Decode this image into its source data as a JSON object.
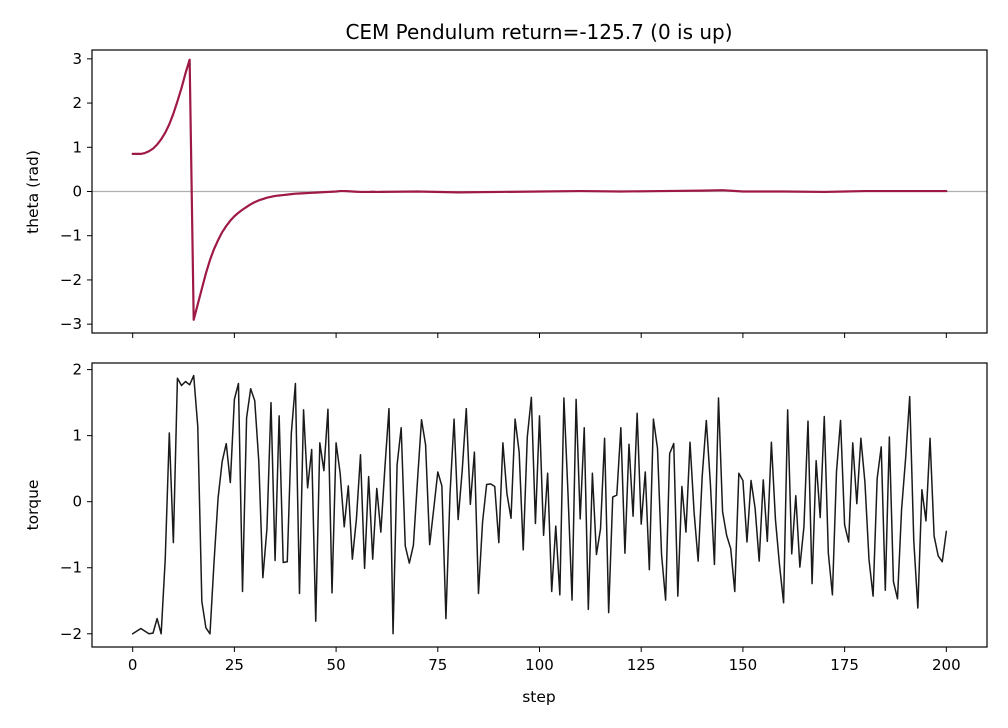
{
  "chart_data": [
    {
      "type": "line",
      "title": "CEM Pendulum  return=-125.7  (0 is up)",
      "xlabel": "",
      "ylabel": "theta (rad)",
      "xlim": [
        -10,
        210
      ],
      "ylim": [
        -3.2,
        3.2
      ],
      "xticks": [
        0,
        25,
        50,
        75,
        100,
        125,
        150,
        175,
        200
      ],
      "yticks": [
        -3,
        -2,
        -1,
        0,
        1,
        2,
        3
      ],
      "xtick_labels_visible": false,
      "grid": false,
      "reference_line": {
        "y": 0,
        "color": "#b0b0b0"
      },
      "series": [
        {
          "name": "",
          "color": "#9e1a45",
          "x": [
            0,
            1,
            2,
            3,
            4,
            5,
            6,
            7,
            8,
            9,
            10,
            11,
            12,
            13,
            14,
            15,
            16,
            17,
            18,
            19,
            20,
            21,
            22,
            23,
            24,
            25,
            26,
            27,
            28,
            29,
            30,
            31,
            32,
            33,
            34,
            35,
            36,
            37,
            38,
            39,
            40,
            41,
            42,
            43,
            44,
            45,
            46,
            47,
            48,
            49,
            50,
            51,
            52,
            53,
            54,
            55,
            56,
            57,
            58,
            59,
            60,
            70,
            80,
            90,
            100,
            110,
            120,
            130,
            140,
            145,
            150,
            160,
            170,
            175,
            180,
            190,
            200
          ],
          "y": [
            0.85,
            0.85,
            0.85,
            0.87,
            0.91,
            0.97,
            1.06,
            1.18,
            1.33,
            1.52,
            1.76,
            2.04,
            2.34,
            2.68,
            2.98,
            -2.9,
            -2.55,
            -2.2,
            -1.85,
            -1.55,
            -1.3,
            -1.1,
            -0.92,
            -0.78,
            -0.66,
            -0.56,
            -0.48,
            -0.41,
            -0.35,
            -0.29,
            -0.24,
            -0.2,
            -0.17,
            -0.14,
            -0.12,
            -0.1,
            -0.09,
            -0.08,
            -0.07,
            -0.06,
            -0.05,
            -0.045,
            -0.04,
            -0.035,
            -0.03,
            -0.025,
            -0.02,
            -0.015,
            -0.01,
            -0.005,
            0.0,
            0.01,
            0.01,
            0.005,
            0.0,
            -0.005,
            -0.01,
            -0.01,
            -0.01,
            -0.005,
            -0.01,
            0.0,
            -0.02,
            -0.01,
            0.0,
            0.01,
            0.0,
            0.01,
            0.02,
            0.03,
            0.0,
            0.0,
            -0.01,
            0.0,
            0.01,
            0.01,
            0.01
          ]
        }
      ]
    },
    {
      "type": "line",
      "title": "",
      "xlabel": "step",
      "ylabel": "torque",
      "xlim": [
        -10,
        210
      ],
      "ylim": [
        -2.2,
        2.1
      ],
      "xticks": [
        0,
        25,
        50,
        75,
        100,
        125,
        150,
        175,
        200
      ],
      "yticks": [
        -2,
        -1,
        0,
        1,
        2
      ],
      "xtick_labels_visible": true,
      "grid": false,
      "series": [
        {
          "name": "",
          "color": "#1a1a1a",
          "y": [
            -2.0,
            -1.96,
            -1.92,
            -1.96,
            -2.0,
            -1.99,
            -1.77,
            -2.0,
            -0.87,
            1.04,
            -0.62,
            1.87,
            1.76,
            1.82,
            1.77,
            1.91,
            1.14,
            -1.51,
            -1.91,
            -2.0,
            -0.91,
            0.06,
            0.61,
            0.88,
            0.29,
            1.55,
            1.79,
            -1.36,
            1.27,
            1.71,
            1.53,
            0.61,
            -1.15,
            -0.41,
            1.5,
            -0.89,
            1.3,
            -0.92,
            -0.91,
            1.04,
            1.79,
            -1.39,
            1.39,
            0.21,
            0.79,
            -1.81,
            0.89,
            0.47,
            1.4,
            -1.38,
            0.89,
            0.43,
            -0.38,
            0.24,
            -0.87,
            -0.26,
            0.71,
            -1.01,
            0.38,
            -0.87,
            0.2,
            -0.46,
            0.52,
            1.41,
            -2.0,
            0.56,
            1.12,
            -0.67,
            -0.93,
            -0.66,
            0.31,
            1.24,
            0.86,
            -0.65,
            -0.11,
            0.45,
            0.24,
            -1.77,
            0.11,
            1.25,
            -0.27,
            0.47,
            1.41,
            -0.04,
            0.75,
            -1.39,
            -0.31,
            0.26,
            0.27,
            0.23,
            -0.62,
            0.89,
            0.12,
            -0.25,
            1.25,
            0.75,
            -0.73,
            0.98,
            1.58,
            -0.33,
            1.3,
            -0.51,
            0.43,
            -1.36,
            -0.37,
            -1.41,
            1.57,
            0.13,
            -1.49,
            1.55,
            -0.26,
            1.12,
            -1.63,
            0.43,
            -0.8,
            -0.41,
            0.96,
            -1.68,
            0.07,
            0.1,
            1.12,
            -0.78,
            0.87,
            -0.22,
            1.34,
            -0.34,
            0.45,
            -1.03,
            1.25,
            0.81,
            -0.8,
            -1.49,
            0.73,
            0.88,
            -1.43,
            0.23,
            -0.46,
            0.9,
            -0.16,
            -0.9,
            0.39,
            1.23,
            0.28,
            -0.95,
            1.57,
            -0.15,
            -0.51,
            -0.71,
            -1.36,
            0.43,
            0.32,
            -0.61,
            0.32,
            -0.1,
            -0.9,
            0.33,
            -0.6,
            0.9,
            -0.27,
            -0.96,
            -1.53,
            1.39,
            -0.79,
            0.09,
            -0.99,
            -0.38,
            1.22,
            -1.24,
            0.62,
            -0.24,
            1.29,
            -0.78,
            -1.41,
            0.45,
            1.23,
            -0.35,
            -0.61,
            0.89,
            -0.03,
            0.96,
            0.29,
            -0.88,
            -1.43,
            0.35,
            0.83,
            -1.34,
            0.98,
            -1.21,
            -1.47,
            -0.12,
            0.66,
            1.59,
            -0.59,
            -1.61,
            0.18,
            -0.29,
            0.96,
            -0.52,
            -0.82,
            -0.91,
            -0.45
          ]
        }
      ]
    }
  ]
}
